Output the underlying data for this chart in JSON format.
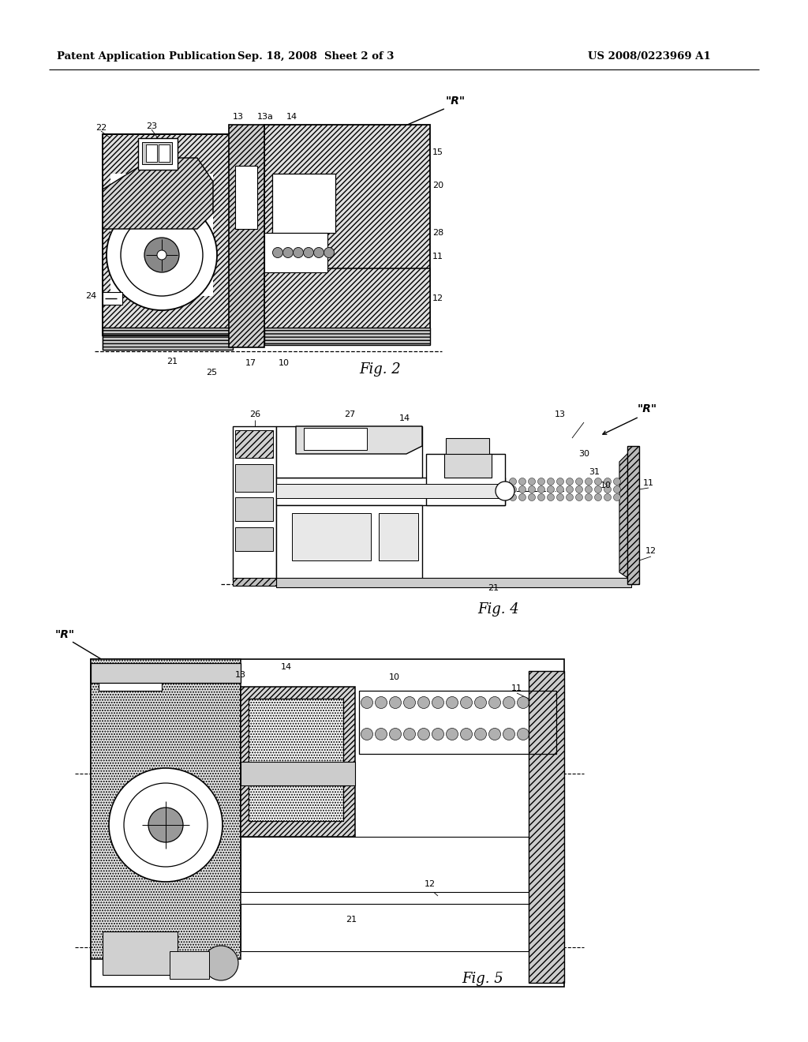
{
  "header_left": "Patent Application Publication",
  "header_mid": "Sep. 18, 2008  Sheet 2 of 3",
  "header_right": "US 2008/0223969 A1",
  "bg_color": "#ffffff",
  "fig2_label": "Fig. 2",
  "fig4_label": "Fig. 4",
  "fig5_label": "Fig. 5",
  "text_color": "#000000",
  "hatch_color": "#000000",
  "line_color": "#000000"
}
